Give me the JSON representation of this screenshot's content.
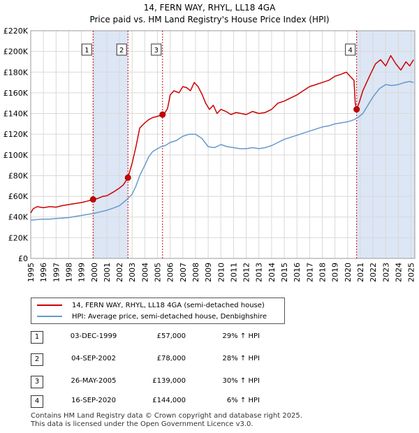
{
  "chart_data": {
    "type": "line",
    "title": "14, FERN WAY, RHYL, LL18 4GA",
    "subtitle": "Price paid vs. HM Land Registry's House Price Index (HPI)",
    "xlim": [
      1995,
      2025.3
    ],
    "ylim": [
      0,
      220000
    ],
    "x_ticks": [
      "1995",
      "1996",
      "1997",
      "1998",
      "1999",
      "2000",
      "2001",
      "2002",
      "2003",
      "2004",
      "2005",
      "2006",
      "2007",
      "2008",
      "2009",
      "2010",
      "2011",
      "2012",
      "2013",
      "2014",
      "2015",
      "2016",
      "2017",
      "2018",
      "2019",
      "2020",
      "2021",
      "2022",
      "2023",
      "2024",
      "2025"
    ],
    "y_ticks": [
      "£0",
      "£20K",
      "£40K",
      "£60K",
      "£80K",
      "£100K",
      "£120K",
      "£140K",
      "£160K",
      "£180K",
      "£200K",
      "£220K"
    ],
    "colors": {
      "price": "#cc0000",
      "hpi": "#6699cc",
      "shade": "#dce6f5",
      "marker": "#cc0000"
    },
    "series": [
      {
        "name": "14, FERN WAY, RHYL, LL18 4GA (semi-detached house)",
        "x": [
          1995.0,
          1995.2,
          1995.5,
          1996.0,
          1996.5,
          1997.0,
          1997.5,
          1998.0,
          1998.5,
          1999.0,
          1999.5,
          1999.92,
          2000.3,
          2000.7,
          2001.0,
          2001.5,
          2002.0,
          2002.3,
          2002.67,
          2003.0,
          2003.3,
          2003.6,
          2004.0,
          2004.3,
          2004.6,
          2004.9,
          2005.2,
          2005.4,
          2005.6,
          2005.8,
          2006.0,
          2006.3,
          2006.7,
          2007.0,
          2007.3,
          2007.6,
          2007.9,
          2008.2,
          2008.5,
          2008.8,
          2009.1,
          2009.4,
          2009.7,
          2010.0,
          2010.4,
          2010.8,
          2011.2,
          2011.6,
          2012.0,
          2012.5,
          2013.0,
          2013.5,
          2014.0,
          2014.5,
          2015.0,
          2015.5,
          2016.0,
          2016.5,
          2017.0,
          2017.5,
          2018.0,
          2018.5,
          2019.0,
          2019.5,
          2019.9,
          2020.2,
          2020.5,
          2020.6,
          2020.71,
          2020.9,
          2021.2,
          2021.5,
          2021.8,
          2022.2,
          2022.6,
          2023.0,
          2023.4,
          2023.8,
          2024.2,
          2024.6,
          2024.9,
          2025.2
        ],
        "y": [
          44000,
          48000,
          50000,
          49000,
          50000,
          49500,
          51000,
          52000,
          53000,
          54000,
          55500,
          57000,
          58000,
          60000,
          60500,
          64000,
          68000,
          71000,
          78000,
          92000,
          108000,
          126000,
          131000,
          134000,
          136000,
          137000,
          138000,
          139000,
          141000,
          145000,
          158000,
          162000,
          160000,
          166000,
          165000,
          162000,
          170000,
          166000,
          159000,
          150000,
          144000,
          148000,
          140000,
          144000,
          142000,
          139000,
          141000,
          140000,
          139000,
          142000,
          140000,
          141000,
          144000,
          150000,
          152000,
          155000,
          158000,
          162000,
          166000,
          168000,
          170000,
          172000,
          176000,
          178000,
          180000,
          176000,
          172000,
          150000,
          144000,
          150000,
          162000,
          170000,
          178000,
          188000,
          192000,
          186000,
          196000,
          188000,
          182000,
          190000,
          186000,
          192000
        ]
      },
      {
        "name": "HPI: Average price, semi-detached house, Denbighshire",
        "x": [
          1995.0,
          1995.5,
          1996.0,
          1996.5,
          1997.0,
          1997.5,
          1998.0,
          1998.5,
          1999.0,
          1999.5,
          2000.0,
          2000.5,
          2001.0,
          2001.5,
          2002.0,
          2002.5,
          2003.0,
          2003.3,
          2003.6,
          2004.0,
          2004.3,
          2004.6,
          2005.0,
          2005.3,
          2005.6,
          2006.0,
          2006.5,
          2007.0,
          2007.5,
          2008.0,
          2008.5,
          2009.0,
          2009.5,
          2010.0,
          2010.5,
          2011.0,
          2011.5,
          2012.0,
          2012.5,
          2013.0,
          2013.5,
          2014.0,
          2014.5,
          2015.0,
          2015.5,
          2016.0,
          2016.5,
          2017.0,
          2017.5,
          2018.0,
          2018.5,
          2019.0,
          2019.5,
          2020.0,
          2020.5,
          2020.8,
          2021.2,
          2021.6,
          2022.0,
          2022.5,
          2023.0,
          2023.5,
          2024.0,
          2024.5,
          2024.9,
          2025.2
        ],
        "y": [
          37000,
          37500,
          38000,
          38000,
          38500,
          39000,
          39500,
          40500,
          41500,
          42500,
          43500,
          45000,
          46500,
          48500,
          51000,
          56000,
          62000,
          70000,
          80000,
          90000,
          98000,
          103000,
          106000,
          108000,
          109000,
          112000,
          114000,
          118000,
          120000,
          120000,
          116000,
          108000,
          107000,
          110000,
          108000,
          107000,
          106000,
          106000,
          107000,
          106000,
          107000,
          109000,
          112000,
          115000,
          117000,
          119000,
          121000,
          123000,
          125000,
          127000,
          128000,
          130000,
          131000,
          132000,
          134000,
          136000,
          140000,
          148000,
          156000,
          164000,
          168000,
          167000,
          168000,
          170000,
          171000,
          170000
        ]
      }
    ],
    "transactions": [
      {
        "id": "1",
        "x": 1999.92,
        "y": 57000,
        "date": "03-DEC-1999",
        "price": "£57,000",
        "hpi": "29% ↑ HPI"
      },
      {
        "id": "2",
        "x": 2002.67,
        "y": 78000,
        "date": "04-SEP-2002",
        "price": "£78,000",
        "hpi": "28% ↑ HPI"
      },
      {
        "id": "3",
        "x": 2005.4,
        "y": 139000,
        "date": "26-MAY-2005",
        "price": "£139,000",
        "hpi": "30% ↑ HPI"
      },
      {
        "id": "4",
        "x": 2020.71,
        "y": 144000,
        "date": "16-SEP-2020",
        "price": "£144,000",
        "hpi": "6% ↑ HPI"
      }
    ],
    "shaded_spans": [
      [
        1999.92,
        2002.67
      ],
      [
        2020.71,
        2025.3
      ]
    ]
  },
  "legend": {
    "price_label": "14, FERN WAY, RHYL, LL18 4GA (semi-detached house)",
    "hpi_label": "HPI: Average price, semi-detached house, Denbighshire"
  },
  "footer": {
    "line1": "Contains HM Land Registry data © Crown copyright and database right 2025.",
    "line2": "This data is licensed under the Open Government Licence v3.0."
  }
}
